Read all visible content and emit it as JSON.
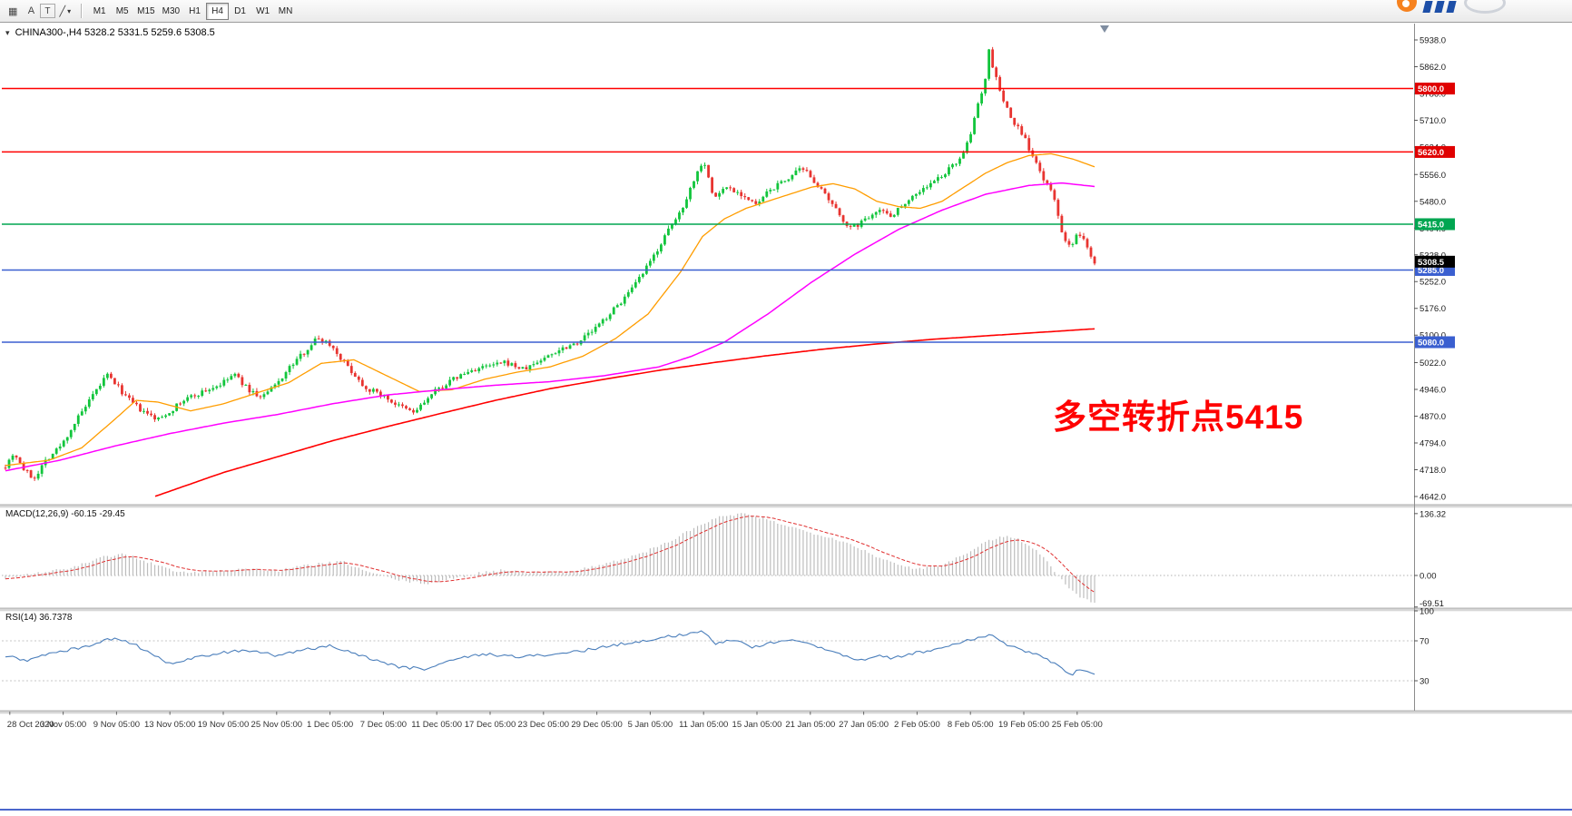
{
  "toolbar": {
    "grid_icon": "▦",
    "cursor_label": "A",
    "text_label": "T",
    "trendline_icon": "╱",
    "caret_icon": "▾",
    "timeframes": [
      "M1",
      "M5",
      "M15",
      "M30",
      "H1",
      "H4",
      "D1",
      "W1",
      "MN"
    ],
    "active_timeframe": "H4"
  },
  "chart_data": {
    "type": "candlestick",
    "symbol": "CHINA300-",
    "timeframe": "H4",
    "header": {
      "collapse_icon": "▾",
      "symbol": "CHINA300-,H4",
      "ohlc": "5328.2 5331.5 5259.6 5308.5"
    },
    "annotation": {
      "text": "多空转折点5415",
      "color": "#ff0000"
    },
    "price_axis": [
      "5938.0",
      "5862.0",
      "5786.0",
      "5710.0",
      "5634.0",
      "5556.0",
      "5480.0",
      "5404.0",
      "5328.0",
      "5252.0",
      "5176.0",
      "5100.0",
      "5022.0",
      "4946.0",
      "4870.0",
      "4794.0",
      "4718.0",
      "4642.0"
    ],
    "price_range": {
      "top": 5938.0,
      "bottom": 4642.0
    },
    "levels": [
      {
        "price": 5800.0,
        "label": "5800.0",
        "line": "#ff0000",
        "badge": "#e00000"
      },
      {
        "price": 5620.0,
        "label": "5620.0",
        "line": "#ff0000",
        "badge": "#e00000"
      },
      {
        "price": 5415.0,
        "label": "5415.0",
        "line": "#00a651",
        "badge": "#00a651"
      },
      {
        "price": 5285.0,
        "label": "5285.0",
        "line": "#3a5fd0",
        "badge": "#3a5fd0"
      },
      {
        "price": 5080.0,
        "label": "5080.0",
        "line": "#3a5fd0",
        "badge": "#3a5fd0"
      }
    ],
    "current_price": {
      "price": 5308.5,
      "label": "5308.5",
      "badge": "#000000"
    },
    "date_axis": [
      "28 Oct 2020",
      "3 Nov 05:00",
      "9 Nov 05:00",
      "13 Nov 05:00",
      "19 Nov 05:00",
      "25 Nov 05:00",
      "1 Dec 05:00",
      "7 Dec 05:00",
      "11 Dec 05:00",
      "17 Dec 05:00",
      "23 Dec 05:00",
      "29 Dec 05:00",
      "5 Jan 05:00",
      "11 Jan 05:00",
      "15 Jan 05:00",
      "21 Jan 05:00",
      "27 Jan 05:00",
      "2 Feb 05:00",
      "8 Feb 05:00",
      "19 Feb 05:00",
      "25 Feb 05:00"
    ],
    "candles": {
      "n": 300,
      "noise_body": 14,
      "noise_wick": 9,
      "up_color": "#12c53c",
      "down_color": "#e83430",
      "close_anchors": [
        [
          0.0,
          4730
        ],
        [
          0.008,
          4768
        ],
        [
          0.016,
          4722
        ],
        [
          0.026,
          4692
        ],
        [
          0.036,
          4742
        ],
        [
          0.052,
          4790
        ],
        [
          0.065,
          4858
        ],
        [
          0.08,
          4925
        ],
        [
          0.093,
          4988
        ],
        [
          0.101,
          4962
        ],
        [
          0.112,
          4920
        ],
        [
          0.126,
          4882
        ],
        [
          0.14,
          4860
        ],
        [
          0.15,
          4882
        ],
        [
          0.165,
          4918
        ],
        [
          0.182,
          4940
        ],
        [
          0.199,
          4962
        ],
        [
          0.21,
          4990
        ],
        [
          0.222,
          4948
        ],
        [
          0.235,
          4922
        ],
        [
          0.248,
          4958
        ],
        [
          0.262,
          5012
        ],
        [
          0.276,
          5058
        ],
        [
          0.286,
          5092
        ],
        [
          0.297,
          5078
        ],
        [
          0.314,
          5012
        ],
        [
          0.33,
          4952
        ],
        [
          0.346,
          4930
        ],
        [
          0.36,
          4900
        ],
        [
          0.375,
          4880
        ],
        [
          0.395,
          4942
        ],
        [
          0.414,
          4980
        ],
        [
          0.43,
          5002
        ],
        [
          0.444,
          5012
        ],
        [
          0.46,
          5022
        ],
        [
          0.476,
          5002
        ],
        [
          0.493,
          5032
        ],
        [
          0.51,
          5062
        ],
        [
          0.526,
          5082
        ],
        [
          0.542,
          5120
        ],
        [
          0.56,
          5178
        ],
        [
          0.576,
          5232
        ],
        [
          0.591,
          5302
        ],
        [
          0.605,
          5378
        ],
        [
          0.62,
          5452
        ],
        [
          0.632,
          5540
        ],
        [
          0.641,
          5602
        ],
        [
          0.65,
          5488
        ],
        [
          0.662,
          5522
        ],
        [
          0.675,
          5502
        ],
        [
          0.689,
          5468
        ],
        [
          0.702,
          5512
        ],
        [
          0.716,
          5540
        ],
        [
          0.729,
          5568
        ],
        [
          0.738,
          5558
        ],
        [
          0.751,
          5502
        ],
        [
          0.763,
          5452
        ],
        [
          0.776,
          5402
        ],
        [
          0.787,
          5422
        ],
        [
          0.8,
          5458
        ],
        [
          0.814,
          5440
        ],
        [
          0.826,
          5478
        ],
        [
          0.836,
          5502
        ],
        [
          0.851,
          5532
        ],
        [
          0.863,
          5560
        ],
        [
          0.876,
          5602
        ],
        [
          0.885,
          5652
        ],
        [
          0.893,
          5760
        ],
        [
          0.899,
          5815
        ],
        [
          0.903,
          5905
        ],
        [
          0.908,
          5845
        ],
        [
          0.913,
          5795
        ],
        [
          0.917,
          5758
        ],
        [
          0.926,
          5700
        ],
        [
          0.934,
          5672
        ],
        [
          0.944,
          5598
        ],
        [
          0.954,
          5540
        ],
        [
          0.963,
          5488
        ],
        [
          0.971,
          5382
        ],
        [
          0.978,
          5342
        ],
        [
          0.985,
          5392
        ],
        [
          0.992,
          5360
        ],
        [
          1.0,
          5308
        ]
      ]
    },
    "ma_lines": [
      {
        "name": "ma-fast-line",
        "color": "#ff9d00",
        "width": 1.3,
        "anchors": [
          [
            0.0,
            4730
          ],
          [
            0.04,
            4745
          ],
          [
            0.07,
            4780
          ],
          [
            0.1,
            4860
          ],
          [
            0.12,
            4915
          ],
          [
            0.14,
            4910
          ],
          [
            0.17,
            4885
          ],
          [
            0.2,
            4905
          ],
          [
            0.23,
            4935
          ],
          [
            0.26,
            4965
          ],
          [
            0.29,
            5020
          ],
          [
            0.32,
            5030
          ],
          [
            0.35,
            4985
          ],
          [
            0.38,
            4940
          ],
          [
            0.41,
            4945
          ],
          [
            0.44,
            4975
          ],
          [
            0.47,
            4995
          ],
          [
            0.5,
            5010
          ],
          [
            0.53,
            5040
          ],
          [
            0.56,
            5090
          ],
          [
            0.59,
            5160
          ],
          [
            0.62,
            5280
          ],
          [
            0.64,
            5380
          ],
          [
            0.66,
            5430
          ],
          [
            0.68,
            5460
          ],
          [
            0.7,
            5480
          ],
          [
            0.72,
            5500
          ],
          [
            0.74,
            5520
          ],
          [
            0.76,
            5530
          ],
          [
            0.78,
            5515
          ],
          [
            0.8,
            5480
          ],
          [
            0.82,
            5465
          ],
          [
            0.84,
            5460
          ],
          [
            0.86,
            5480
          ],
          [
            0.88,
            5520
          ],
          [
            0.9,
            5560
          ],
          [
            0.92,
            5590
          ],
          [
            0.94,
            5610
          ],
          [
            0.96,
            5615
          ],
          [
            0.98,
            5600
          ],
          [
            1.0,
            5578
          ]
        ]
      },
      {
        "name": "ma-mid-line",
        "color": "#ff00ff",
        "width": 1.5,
        "anchors": [
          [
            0.0,
            4715
          ],
          [
            0.05,
            4745
          ],
          [
            0.1,
            4785
          ],
          [
            0.15,
            4820
          ],
          [
            0.2,
            4850
          ],
          [
            0.25,
            4875
          ],
          [
            0.3,
            4905
          ],
          [
            0.35,
            4930
          ],
          [
            0.4,
            4945
          ],
          [
            0.45,
            4958
          ],
          [
            0.5,
            4968
          ],
          [
            0.55,
            4985
          ],
          [
            0.6,
            5010
          ],
          [
            0.63,
            5040
          ],
          [
            0.66,
            5080
          ],
          [
            0.7,
            5160
          ],
          [
            0.74,
            5250
          ],
          [
            0.78,
            5330
          ],
          [
            0.82,
            5400
          ],
          [
            0.86,
            5455
          ],
          [
            0.9,
            5500
          ],
          [
            0.94,
            5525
          ],
          [
            0.97,
            5532
          ],
          [
            1.0,
            5522
          ]
        ]
      },
      {
        "name": "ma-slow-line",
        "color": "#ff0000",
        "width": 1.6,
        "anchors": [
          [
            0.137,
            4642
          ],
          [
            0.2,
            4710
          ],
          [
            0.25,
            4755
          ],
          [
            0.3,
            4800
          ],
          [
            0.35,
            4840
          ],
          [
            0.4,
            4878
          ],
          [
            0.45,
            4915
          ],
          [
            0.5,
            4948
          ],
          [
            0.55,
            4975
          ],
          [
            0.6,
            5000
          ],
          [
            0.65,
            5022
          ],
          [
            0.7,
            5042
          ],
          [
            0.75,
            5060
          ],
          [
            0.8,
            5075
          ],
          [
            0.85,
            5088
          ],
          [
            0.9,
            5098
          ],
          [
            0.95,
            5108
          ],
          [
            1.0,
            5118
          ]
        ]
      }
    ],
    "macd": {
      "label": "MACD(12,26,9) -60.15 -29.45",
      "main_value": -60.15,
      "signal_value": -29.45,
      "axis_labels": [
        "136.32",
        "0.00",
        "-69.51"
      ],
      "axis_values": [
        136.32,
        0,
        -69.51
      ],
      "hist_color": "#bdbdbd",
      "signal_color": "#e03030",
      "anchors": [
        [
          0.0,
          -5
        ],
        [
          0.03,
          6
        ],
        [
          0.06,
          16
        ],
        [
          0.09,
          40
        ],
        [
          0.11,
          48
        ],
        [
          0.13,
          30
        ],
        [
          0.16,
          6
        ],
        [
          0.19,
          9
        ],
        [
          0.22,
          15
        ],
        [
          0.25,
          10
        ],
        [
          0.28,
          24
        ],
        [
          0.31,
          30
        ],
        [
          0.33,
          10
        ],
        [
          0.36,
          -10
        ],
        [
          0.385,
          -18
        ],
        [
          0.41,
          -8
        ],
        [
          0.44,
          8
        ],
        [
          0.46,
          12
        ],
        [
          0.49,
          6
        ],
        [
          0.52,
          10
        ],
        [
          0.55,
          25
        ],
        [
          0.58,
          45
        ],
        [
          0.61,
          75
        ],
        [
          0.635,
          108
        ],
        [
          0.655,
          128
        ],
        [
          0.675,
          136
        ],
        [
          0.695,
          126
        ],
        [
          0.715,
          112
        ],
        [
          0.735,
          97
        ],
        [
          0.755,
          86
        ],
        [
          0.775,
          70
        ],
        [
          0.795,
          48
        ],
        [
          0.815,
          26
        ],
        [
          0.835,
          15
        ],
        [
          0.855,
          20
        ],
        [
          0.875,
          40
        ],
        [
          0.895,
          68
        ],
        [
          0.915,
          88
        ],
        [
          0.93,
          80
        ],
        [
          0.945,
          58
        ],
        [
          0.955,
          35
        ],
        [
          0.965,
          5
        ],
        [
          0.975,
          -25
        ],
        [
          0.985,
          -45
        ],
        [
          1.0,
          -61
        ]
      ]
    },
    "rsi": {
      "label": "RSI(14) 36.7378",
      "value": 36.7378,
      "axis_labels": [
        "100",
        "70",
        "30"
      ],
      "axis_values": [
        100,
        70,
        30
      ],
      "color": "#4a7ebb",
      "level_lines": [
        70,
        30
      ],
      "anchors": [
        [
          0.0,
          55
        ],
        [
          0.02,
          50
        ],
        [
          0.04,
          58
        ],
        [
          0.07,
          63
        ],
        [
          0.1,
          73
        ],
        [
          0.115,
          68
        ],
        [
          0.13,
          60
        ],
        [
          0.15,
          47
        ],
        [
          0.17,
          52
        ],
        [
          0.2,
          58
        ],
        [
          0.22,
          61
        ],
        [
          0.25,
          55
        ],
        [
          0.28,
          62
        ],
        [
          0.3,
          65
        ],
        [
          0.33,
          54
        ],
        [
          0.36,
          44
        ],
        [
          0.385,
          42
        ],
        [
          0.41,
          51
        ],
        [
          0.44,
          57
        ],
        [
          0.47,
          54
        ],
        [
          0.5,
          56
        ],
        [
          0.53,
          60
        ],
        [
          0.56,
          66
        ],
        [
          0.59,
          71
        ],
        [
          0.62,
          76
        ],
        [
          0.64,
          80
        ],
        [
          0.652,
          66
        ],
        [
          0.668,
          72
        ],
        [
          0.685,
          64
        ],
        [
          0.705,
          68
        ],
        [
          0.725,
          71
        ],
        [
          0.745,
          65
        ],
        [
          0.765,
          57
        ],
        [
          0.785,
          50
        ],
        [
          0.8,
          56
        ],
        [
          0.815,
          52
        ],
        [
          0.83,
          57
        ],
        [
          0.85,
          60
        ],
        [
          0.87,
          66
        ],
        [
          0.89,
          72
        ],
        [
          0.905,
          76
        ],
        [
          0.92,
          66
        ],
        [
          0.935,
          60
        ],
        [
          0.95,
          55
        ],
        [
          0.962,
          48
        ],
        [
          0.972,
          40
        ],
        [
          0.98,
          37
        ],
        [
          0.988,
          42
        ],
        [
          1.0,
          37
        ]
      ]
    }
  }
}
